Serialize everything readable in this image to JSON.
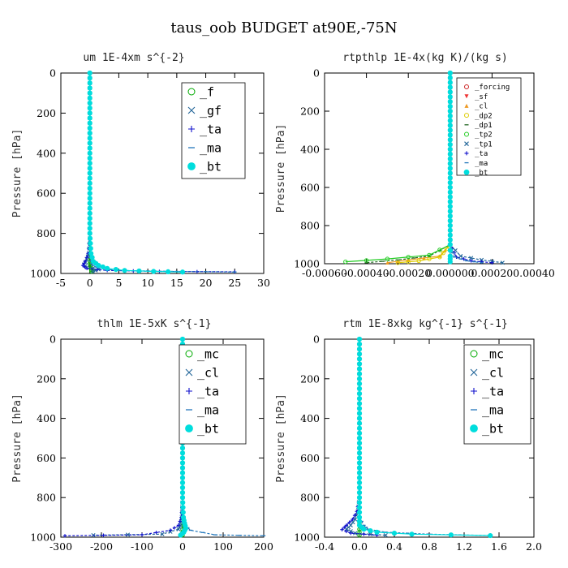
{
  "suptitle": "taus_oob  BUDGET at90E,-75N",
  "chart_data": [
    {
      "type": "line",
      "title": "um   1E-4xm s^{-2}",
      "ylabel": "Pressure [hPa]",
      "xlim": [
        -5,
        30
      ],
      "ylim": [
        1000,
        0
      ],
      "xticks": [
        "-5",
        "0",
        "5",
        "10",
        "15",
        "20",
        "25",
        "30"
      ],
      "yticks": [
        "0",
        "200",
        "400",
        "600",
        "800",
        "1000"
      ],
      "legend_position": "top-right",
      "series": [
        {
          "name": "_f",
          "color": "#00aa00",
          "marker": "o",
          "x": [
            0,
            0,
            0,
            0,
            0,
            0,
            0,
            0.1,
            0.2,
            0.3
          ],
          "y": [
            0,
            200,
            400,
            600,
            800,
            900,
            940,
            960,
            975,
            990
          ]
        },
        {
          "name": "_gf",
          "color": "#226699",
          "marker": "x",
          "x": [
            0,
            0,
            0,
            0,
            -0.2,
            -0.5,
            -1.0,
            -0.5,
            1.5,
            0.5
          ],
          "y": [
            0,
            300,
            600,
            850,
            900,
            930,
            955,
            970,
            980,
            990
          ]
        },
        {
          "name": "_ta",
          "color": "#1111cc",
          "marker": "+",
          "x": [
            0,
            0,
            0,
            -0.3,
            -0.8,
            -1.2,
            -0.5,
            3,
            12,
            25
          ],
          "y": [
            0,
            400,
            800,
            900,
            940,
            960,
            975,
            985,
            990,
            992
          ]
        },
        {
          "name": "_ma",
          "color": "#2277bb",
          "marker": "-",
          "x": [
            0,
            0,
            0,
            0,
            0.2,
            0.5,
            1.5,
            5,
            15,
            25
          ],
          "y": [
            0,
            400,
            800,
            900,
            940,
            960,
            975,
            985,
            990,
            993
          ]
        },
        {
          "name": "_bt",
          "color": "#00dddd",
          "marker": "*",
          "x": [
            0,
            0,
            0,
            0.2,
            0.6,
            1.5,
            3,
            6,
            11,
            16
          ],
          "y": [
            0,
            400,
            800,
            900,
            940,
            960,
            975,
            985,
            990,
            993
          ]
        }
      ]
    },
    {
      "type": "line",
      "title": "rtpthlp   1E-4x(kg K)/(kg s)",
      "ylabel": "Pressure [hPa]",
      "xlim": [
        -0.0006,
        0.0004
      ],
      "ylim": [
        1000,
        0
      ],
      "xticks": [
        "-0.00060",
        "-0.00040",
        "-0.00020",
        "0.000000",
        "0.00020",
        "0.00040"
      ],
      "yticks": [
        "0",
        "200",
        "400",
        "600",
        "800",
        "1000"
      ],
      "legend_position": "top-right",
      "series": [
        {
          "name": "_forcing",
          "color": "#cc2222",
          "marker": "o",
          "x": [
            0,
            0,
            0,
            0,
            0,
            0,
            0,
            0
          ],
          "y": [
            0,
            200,
            400,
            600,
            800,
            900,
            960,
            990
          ]
        },
        {
          "name": "_sf",
          "color": "#ee3333",
          "marker": "v",
          "x": [
            0,
            0,
            0,
            0,
            0,
            0
          ],
          "y": [
            0,
            300,
            600,
            900,
            960,
            990
          ]
        },
        {
          "name": "_cl",
          "color": "#ee9922",
          "marker": "^",
          "x": [
            0,
            0,
            0,
            -5e-05,
            -0.0002,
            -0.0003
          ],
          "y": [
            0,
            600,
            900,
            960,
            980,
            995
          ]
        },
        {
          "name": "_dp2",
          "color": "#ddcc00",
          "marker": "o",
          "x": [
            0,
            0,
            0,
            -5e-05,
            -0.00015,
            -0.00025
          ],
          "y": [
            0,
            600,
            900,
            965,
            985,
            995
          ]
        },
        {
          "name": "_dp1",
          "color": "#226622",
          "marker": "-",
          "x": [
            0,
            0,
            0,
            -0.0001,
            -0.00025,
            -0.0004
          ],
          "y": [
            0,
            600,
            900,
            960,
            980,
            995
          ]
        },
        {
          "name": "_tp2",
          "color": "#22cc22",
          "marker": "o",
          "x": [
            0,
            0,
            0,
            -0.0001,
            -0.0003,
            -0.0005
          ],
          "y": [
            0,
            600,
            900,
            955,
            975,
            990
          ]
        },
        {
          "name": "_tp1",
          "color": "#226699",
          "marker": "x",
          "x": [
            0,
            0,
            0,
            5e-05,
            0.00015,
            0.00025
          ],
          "y": [
            0,
            600,
            900,
            960,
            980,
            995
          ]
        },
        {
          "name": "_ta",
          "color": "#1111cc",
          "marker": "+",
          "x": [
            0,
            0,
            0,
            3e-05,
            0.0001,
            0.0002
          ],
          "y": [
            0,
            600,
            900,
            965,
            985,
            995
          ]
        },
        {
          "name": "_ma",
          "color": "#2277bb",
          "marker": "-",
          "x": [
            0,
            0,
            0,
            2e-05,
            8e-05,
            0.00015
          ],
          "y": [
            0,
            600,
            900,
            965,
            985,
            995
          ]
        },
        {
          "name": "_bt",
          "color": "#00dddd",
          "marker": "*",
          "x": [
            0,
            0,
            0,
            0,
            0,
            0
          ],
          "y": [
            0,
            300,
            600,
            900,
            960,
            990
          ]
        }
      ]
    },
    {
      "type": "line",
      "title": "thlm   1E-5xK  s^{-1}",
      "ylabel": "Pressure [hPa]",
      "xlim": [
        -300,
        200
      ],
      "ylim": [
        1000,
        0
      ],
      "xticks": [
        "-300",
        "-200",
        "-100",
        "0",
        "100",
        "200"
      ],
      "yticks": [
        "0",
        "200",
        "400",
        "600",
        "800",
        "1000"
      ],
      "legend_position": "top-right",
      "series": [
        {
          "name": "_mc",
          "color": "#00aa00",
          "marker": "o",
          "x": [
            0,
            0,
            0,
            0,
            0,
            0,
            0,
            0
          ],
          "y": [
            0,
            200,
            400,
            600,
            800,
            900,
            960,
            990
          ]
        },
        {
          "name": "_cl",
          "color": "#226699",
          "marker": "x",
          "x": [
            0,
            0,
            0,
            -2,
            -5,
            -10,
            -50,
            -220
          ],
          "y": [
            0,
            400,
            800,
            900,
            940,
            960,
            985,
            990
          ]
        },
        {
          "name": "_ta",
          "color": "#1111cc",
          "marker": "+",
          "x": [
            0,
            0,
            0,
            -3,
            -10,
            -30,
            -100,
            -290
          ],
          "y": [
            0,
            400,
            800,
            900,
            940,
            965,
            988,
            993
          ]
        },
        {
          "name": "_ma",
          "color": "#2277bb",
          "marker": "-",
          "x": [
            0,
            0,
            0,
            2,
            5,
            20,
            80,
            200
          ],
          "y": [
            0,
            400,
            800,
            900,
            940,
            965,
            988,
            993
          ]
        },
        {
          "name": "_bt",
          "color": "#00dddd",
          "marker": "*",
          "x": [
            0,
            0,
            0,
            2,
            5,
            8,
            3,
            -5
          ],
          "y": [
            0,
            400,
            800,
            900,
            930,
            955,
            975,
            990
          ]
        }
      ]
    },
    {
      "type": "line",
      "title": "rtm   1E-8xkg kg^{-1} s^{-1}",
      "ylabel": "Pressure [hPa]",
      "xlim": [
        -0.4,
        2.0
      ],
      "ylim": [
        1000,
        0
      ],
      "xticks": [
        "-0.4",
        "0.0",
        "0.4",
        "0.8",
        "1.2",
        "1.6",
        "2.0"
      ],
      "yticks": [
        "0",
        "200",
        "400",
        "600",
        "800",
        "1000"
      ],
      "legend_position": "top-right",
      "series": [
        {
          "name": "_mc",
          "color": "#00aa00",
          "marker": "o",
          "x": [
            0,
            0,
            0,
            0,
            0,
            0,
            0,
            0
          ],
          "y": [
            0,
            200,
            400,
            600,
            800,
            900,
            960,
            990
          ]
        },
        {
          "name": "_cl",
          "color": "#226699",
          "marker": "x",
          "x": [
            0,
            0,
            -0.02,
            -0.05,
            -0.1,
            -0.15,
            -0.05,
            0.3
          ],
          "y": [
            0,
            800,
            870,
            910,
            940,
            960,
            980,
            990
          ]
        },
        {
          "name": "_ta",
          "color": "#1111cc",
          "marker": "+",
          "x": [
            0,
            0,
            -0.03,
            -0.08,
            -0.15,
            -0.2,
            -0.1,
            0.2
          ],
          "y": [
            0,
            800,
            870,
            910,
            940,
            962,
            980,
            990
          ]
        },
        {
          "name": "_ma",
          "color": "#2277bb",
          "marker": "-",
          "x": [
            0,
            0,
            0,
            0.05,
            0.1,
            0.3,
            0.8,
            1.5
          ],
          "y": [
            0,
            800,
            900,
            940,
            960,
            975,
            985,
            992
          ]
        },
        {
          "name": "_bt",
          "color": "#00dddd",
          "marker": "*",
          "x": [
            0,
            0,
            0,
            0,
            0.05,
            0.2,
            0.6,
            1.5
          ],
          "y": [
            0,
            800,
            900,
            940,
            960,
            975,
            985,
            992
          ]
        }
      ]
    }
  ]
}
